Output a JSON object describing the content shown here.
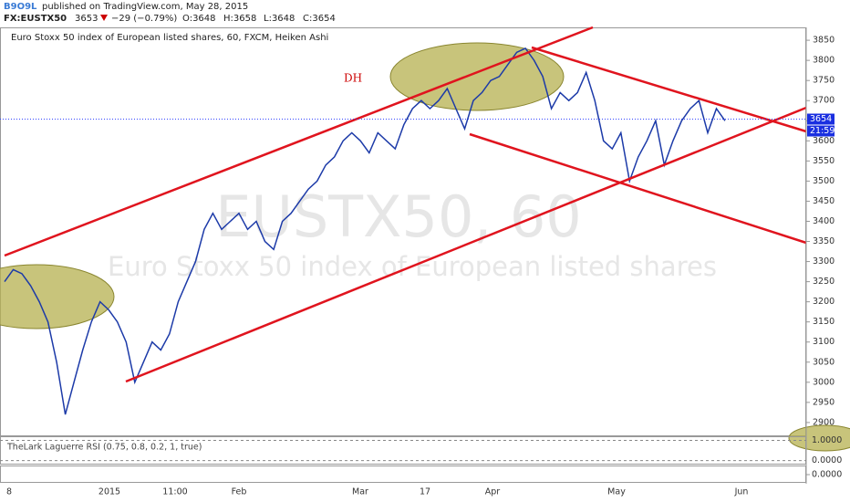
{
  "header": {
    "publisher": "B9O9L",
    "published": "published on TradingView.com, May 28, 2015",
    "symbol": "FX:EUSTX50",
    "last": "3653",
    "change": "−29 (−0.79%)",
    "ohlc": [
      "O:3648",
      "H:3658",
      "L:3648",
      "C:3654"
    ]
  },
  "chart_data": {
    "type": "line",
    "title": "Euro Stoxx 50 index of European listed shares, 60, FXCM, Heiken Ashi",
    "watermark": [
      "EUSTX50, 60",
      "Euro Stoxx 50 index of European listed shares"
    ],
    "annotation": "DH",
    "xtick_labels": [
      "8",
      "2015",
      "11:00",
      "Feb",
      "Mar",
      "17",
      "Apr",
      "May",
      "Jun"
    ],
    "values": [
      3250,
      3280,
      3270,
      3240,
      3200,
      3150,
      3050,
      2920,
      3000,
      3080,
      3150,
      3200,
      3180,
      3150,
      3100,
      3000,
      3050,
      3100,
      3080,
      3120,
      3200,
      3250,
      3300,
      3380,
      3420,
      3380,
      3400,
      3420,
      3380,
      3400,
      3350,
      3330,
      3400,
      3420,
      3450,
      3480,
      3500,
      3540,
      3560,
      3600,
      3620,
      3600,
      3570,
      3620,
      3600,
      3580,
      3640,
      3680,
      3700,
      3680,
      3700,
      3730,
      3680,
      3630,
      3700,
      3720,
      3750,
      3760,
      3790,
      3820,
      3830,
      3800,
      3760,
      3680,
      3720,
      3700,
      3720,
      3770,
      3700,
      3600,
      3580,
      3620,
      3500,
      3560,
      3600,
      3650,
      3540,
      3600,
      3650,
      3680,
      3700,
      3620,
      3680,
      3650
    ],
    "color": "#1c3aa8",
    "last_value": 3654,
    "countdown": "21:59",
    "ylim": [
      2868,
      3882
    ],
    "yticks": [
      2900,
      2950,
      3000,
      3050,
      3100,
      3150,
      3200,
      3250,
      3300,
      3350,
      3400,
      3450,
      3500,
      3550,
      3600,
      3650,
      3700,
      3750,
      3800,
      3850
    ]
  },
  "indicator": {
    "title": "TheLark Laguerre RSI (0.75, 0.8, 0.2, 1, true)",
    "ylim": [
      -0.15,
      1.2
    ],
    "yticks": [
      {
        "value": 1,
        "label": "1.0000"
      },
      {
        "value": 0,
        "label": "0.0000"
      }
    ]
  },
  "indicator2": {
    "yticks": [
      {
        "value": 0,
        "label": "0.0000"
      }
    ]
  }
}
